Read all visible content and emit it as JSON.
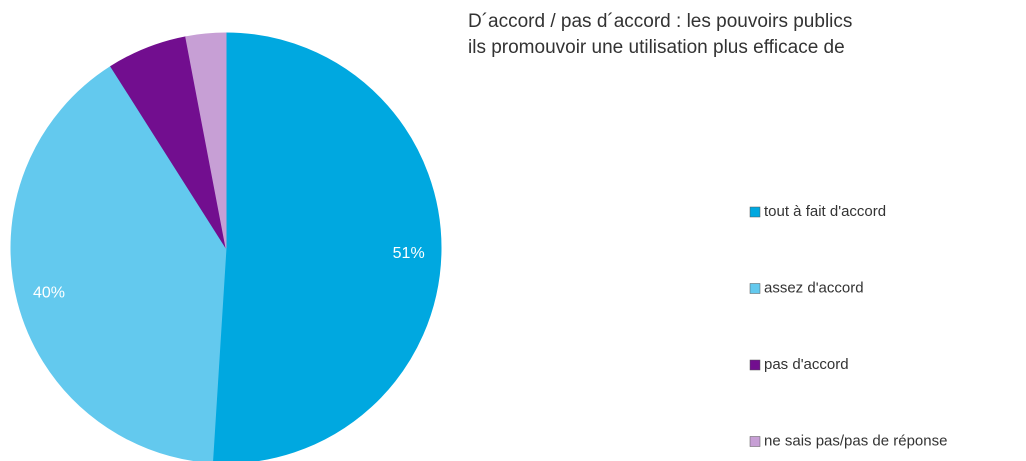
{
  "chart_data": {
    "type": "pie",
    "title": [
      "D´accord / pas d´accord : les pouvoirs publics",
      "ils promouvoir une utilisation plus efficace de"
    ],
    "categories": [
      "tout à fait d'accord",
      "assez d'accord",
      "pas d'accord",
      "ne sais pas/pas de réponse"
    ],
    "values": [
      51,
      40,
      6,
      3
    ],
    "value_labels": [
      "51%",
      "40%",
      null,
      null
    ],
    "colors": [
      "#00a8e0",
      "#63c9ee",
      "#720e8f",
      "#c79fd5"
    ]
  }
}
